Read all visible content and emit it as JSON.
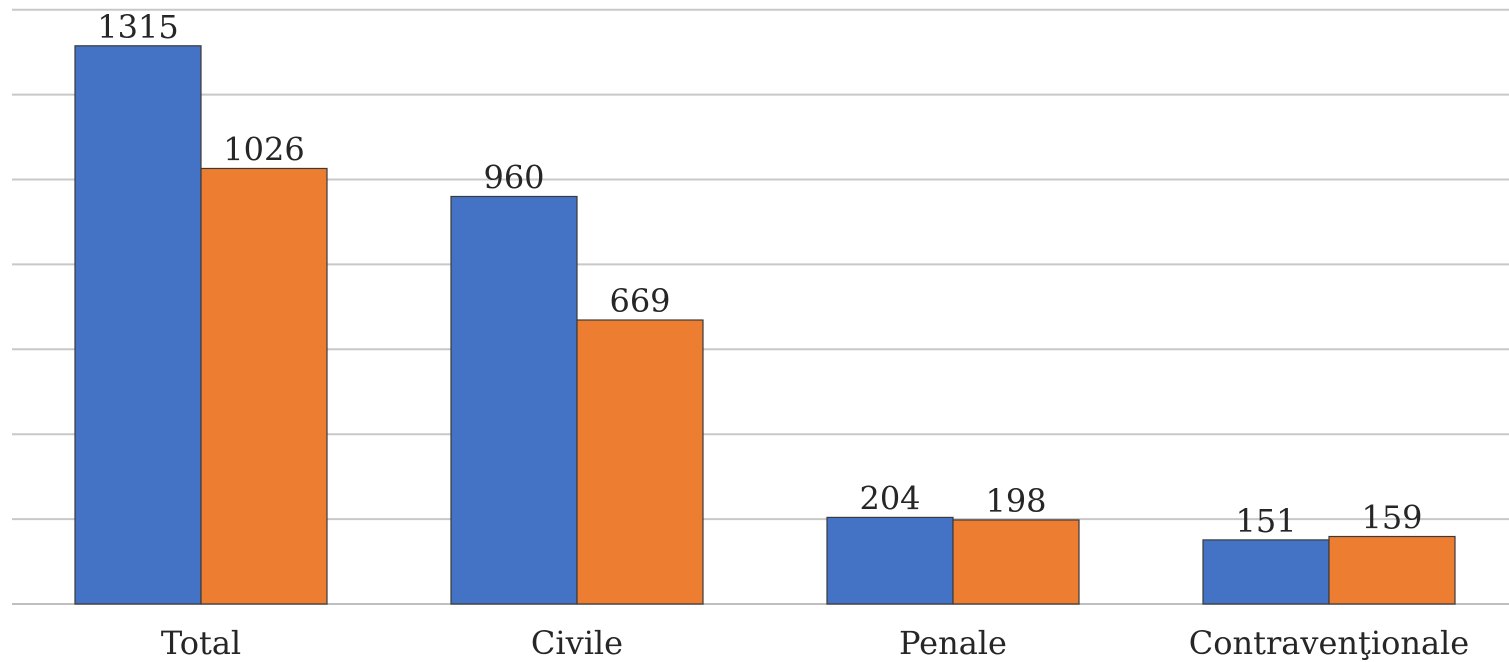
{
  "chart_data": {
    "type": "bar",
    "categories": [
      "Total",
      "Civile",
      "Penale",
      "Contravenţionale"
    ],
    "series": [
      {
        "color": "#4472C4",
        "values": [
          1315,
          960,
          204,
          151
        ]
      },
      {
        "color": "#ED7D31",
        "values": [
          1026,
          669,
          198,
          159
        ]
      }
    ],
    "ylim": [
      0,
      1400
    ],
    "ytick_step": 200,
    "grid": true,
    "legend": "none",
    "title": "",
    "xlabel": "",
    "ylabel": ""
  }
}
